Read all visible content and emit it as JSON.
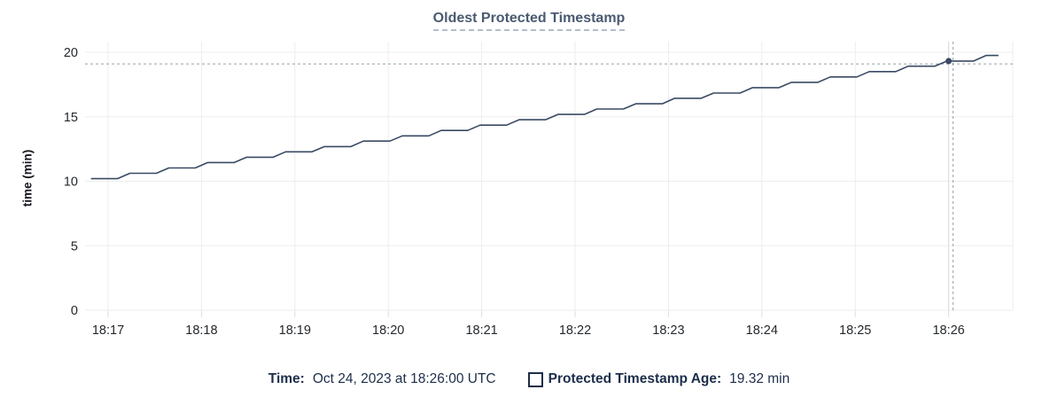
{
  "chart_data": {
    "type": "line",
    "title": "Oldest Protected Timestamp",
    "xlabel": "",
    "ylabel": "time (min)",
    "x_tick_labels": [
      "18:17",
      "18:18",
      "18:19",
      "18:20",
      "18:21",
      "18:22",
      "18:23",
      "18:24",
      "18:25",
      "18:26"
    ],
    "y_tick_values": [
      0,
      5,
      10,
      15,
      20
    ],
    "ylim": [
      0,
      20
    ],
    "grid": true,
    "x_unit_note": "t = seconds after 18:17:00",
    "series": [
      {
        "name": "Protected Timestamp Age",
        "points": [
          [
            -11,
            10.2
          ],
          [
            6,
            10.2
          ],
          [
            14,
            10.62
          ],
          [
            31,
            10.62
          ],
          [
            39,
            11.03
          ],
          [
            56,
            11.03
          ],
          [
            64,
            11.45
          ],
          [
            81,
            11.45
          ],
          [
            89,
            11.86
          ],
          [
            106,
            11.86
          ],
          [
            114,
            12.28
          ],
          [
            131,
            12.28
          ],
          [
            139,
            12.69
          ],
          [
            156,
            12.69
          ],
          [
            164,
            13.11
          ],
          [
            181,
            13.11
          ],
          [
            189,
            13.52
          ],
          [
            206,
            13.52
          ],
          [
            214,
            13.94
          ],
          [
            231,
            13.94
          ],
          [
            239,
            14.35
          ],
          [
            256,
            14.35
          ],
          [
            264,
            14.77
          ],
          [
            281,
            14.77
          ],
          [
            289,
            15.18
          ],
          [
            306,
            15.18
          ],
          [
            314,
            15.6
          ],
          [
            331,
            15.6
          ],
          [
            339,
            16.01
          ],
          [
            356,
            16.01
          ],
          [
            364,
            16.43
          ],
          [
            381,
            16.43
          ],
          [
            389,
            16.84
          ],
          [
            406,
            16.84
          ],
          [
            414,
            17.26
          ],
          [
            431,
            17.26
          ],
          [
            439,
            17.67
          ],
          [
            456,
            17.67
          ],
          [
            464,
            18.09
          ],
          [
            481,
            18.09
          ],
          [
            489,
            18.5
          ],
          [
            506,
            18.5
          ],
          [
            514,
            18.92
          ],
          [
            531,
            18.92
          ],
          [
            539,
            19.32
          ],
          [
            556,
            19.32
          ],
          [
            564,
            19.75
          ],
          [
            572,
            19.75
          ]
        ]
      }
    ],
    "highlight_point": {
      "t_sec": 540,
      "value_min": 19.32,
      "x_tick": "18:26"
    }
  },
  "tooltip": {
    "time_label": "Time:",
    "time_value": "Oct 24, 2023 at 18:26:00 UTC",
    "series_label": "Protected Timestamp Age:",
    "series_value": "19.32 min"
  },
  "colors": {
    "title_text": "#4a5a72",
    "title_underline": "#b3bdcd",
    "series_line": "#394a63",
    "grid": "#ededed",
    "grid_hover": "#d9d9d9",
    "tick_stub": "#dedede",
    "tick_text": "#24282c",
    "legend_text": "#1c2e4a",
    "crosshair": "#90a4ae"
  }
}
